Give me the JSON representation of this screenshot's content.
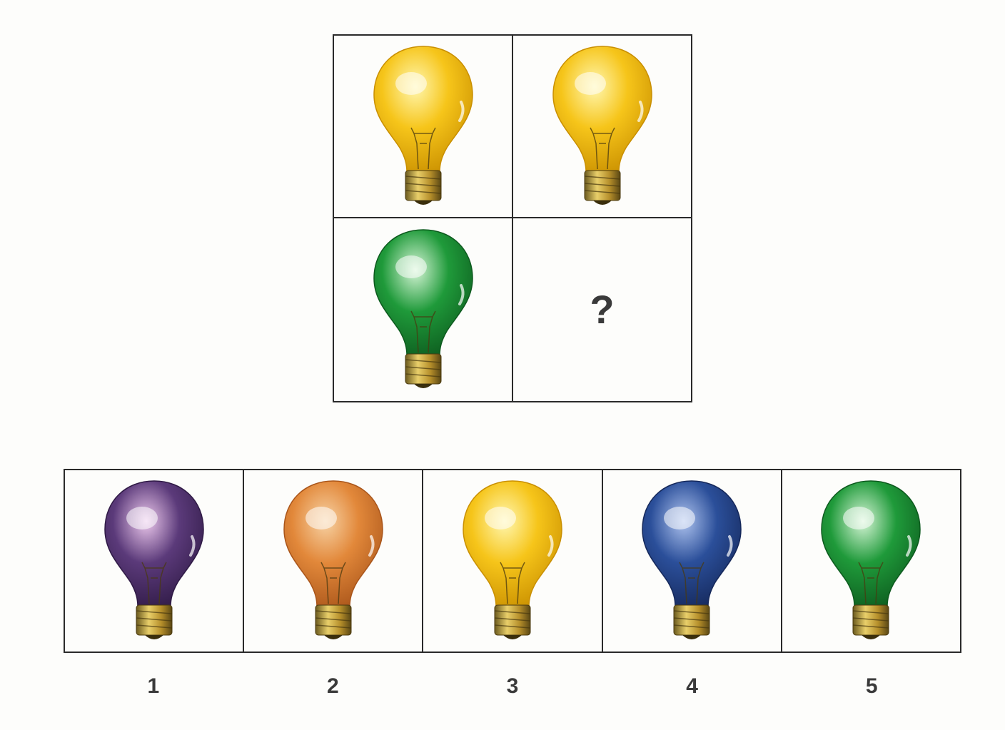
{
  "matrix": {
    "cells": [
      {
        "color": "yellow",
        "fill": "#f6c51a",
        "light": "#fff7b0",
        "dark": "#c98f00"
      },
      {
        "color": "yellow",
        "fill": "#f6c51a",
        "light": "#fff7b0",
        "dark": "#c98f00"
      },
      {
        "color": "green",
        "fill": "#1f9a3a",
        "light": "#d6f5d6",
        "dark": "#0d5a1e"
      }
    ],
    "missing_symbol": "?"
  },
  "options": [
    {
      "label": "1",
      "color": "purple",
      "fill": "#5b3a7a",
      "light": "#ecc8ec",
      "dark": "#2f1a45"
    },
    {
      "label": "2",
      "color": "orange",
      "fill": "#e2883a",
      "light": "#f7d2a4",
      "dark": "#a9551a"
    },
    {
      "label": "3",
      "color": "yellow",
      "fill": "#f6c51a",
      "light": "#fff7b0",
      "dark": "#c98f00"
    },
    {
      "label": "4",
      "color": "blue",
      "fill": "#2b4f9a",
      "light": "#aec3ee",
      "dark": "#15285a"
    },
    {
      "label": "5",
      "color": "green",
      "fill": "#1f9a3a",
      "light": "#d6f5d6",
      "dark": "#0d5a1e"
    }
  ],
  "icons": {
    "bulb": "light-bulb-icon"
  }
}
